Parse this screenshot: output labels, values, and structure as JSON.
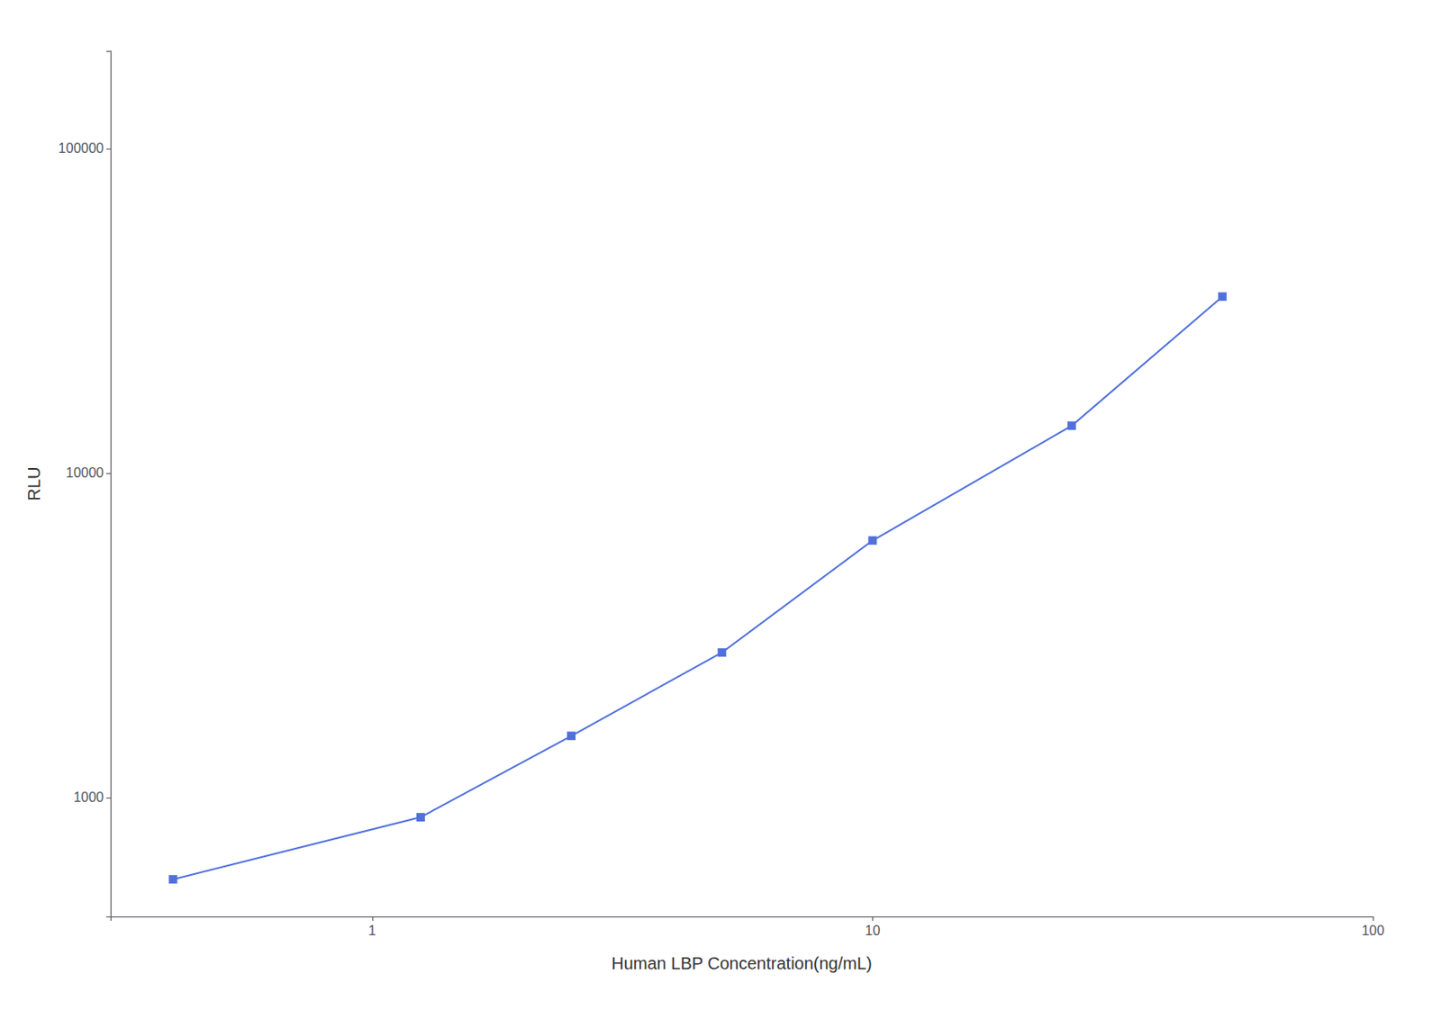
{
  "chart_data": {
    "type": "line",
    "x": [
      0.4,
      1.25,
      2.5,
      5.0,
      10.0,
      25.0,
      50.0
    ],
    "values": [
      560,
      870,
      1550,
      2800,
      6200,
      14000,
      35000
    ],
    "xlabel": "Human LBP Concentration(ng/mL)",
    "ylabel": "RLU",
    "xlim": [
      0.3,
      100
    ],
    "ylim": [
      430,
      200000
    ],
    "xticks": [
      1,
      10,
      100
    ],
    "yticks": [
      1000,
      10000,
      100000
    ],
    "log": true,
    "grid": false,
    "marker": "square"
  }
}
